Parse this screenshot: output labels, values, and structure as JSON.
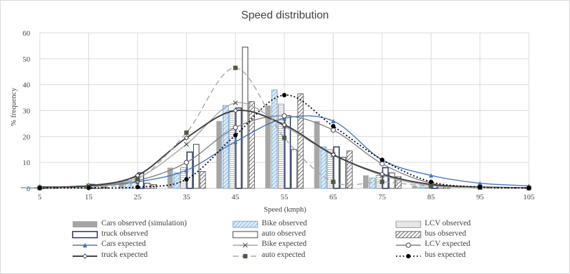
{
  "chart_data": {
    "type": "bar",
    "title": "Speed distribution",
    "xlabel": "Speed (kmph)",
    "ylabel": "% frequency",
    "x": [
      5,
      15,
      25,
      35,
      45,
      55,
      65,
      75,
      85,
      95,
      105
    ],
    "ylim": [
      0,
      60
    ],
    "yticks": [
      0,
      10,
      20,
      30,
      40,
      50,
      60
    ],
    "grid": true,
    "legend_position": "bottom",
    "bar_series": [
      {
        "name": "Cars observed  (simulation)",
        "key": "cars",
        "color": "#a6a6a6",
        "x": [
          5,
          15,
          25,
          35,
          45,
          55,
          65,
          75,
          85
        ],
        "values": [
          0.5,
          1.0,
          3.0,
          8.0,
          26.0,
          32.0,
          26.0,
          5.0,
          1.0
        ]
      },
      {
        "name": "Bike observed",
        "key": "bike",
        "color": "#bdd7ee",
        "x": [
          5,
          15,
          25,
          35,
          45,
          55,
          65,
          75,
          85
        ],
        "values": [
          0.3,
          1.0,
          3.0,
          6.0,
          32.0,
          38.0,
          16.0,
          4.0,
          0.5
        ]
      },
      {
        "name": "LCV observed",
        "key": "lcv",
        "color": "#d9d9d9",
        "x": [
          5,
          15,
          25,
          35,
          45,
          55,
          65,
          75,
          85
        ],
        "values": [
          0.3,
          1.0,
          4.0,
          8.0,
          30.0,
          32.5,
          15.0,
          5.0,
          0.5
        ]
      },
      {
        "name": "truck observed",
        "key": "truck",
        "color": "#2f3f6f",
        "x": [
          5,
          15,
          25,
          35,
          45,
          55,
          65,
          75,
          85
        ],
        "values": [
          0.5,
          1.5,
          6.0,
          14.0,
          31.0,
          28.0,
          16.0,
          8.0,
          1.5
        ]
      },
      {
        "name": "auto observed",
        "key": "auto",
        "color": "#595959",
        "x": [
          5,
          15,
          25,
          35,
          45,
          55,
          65,
          75,
          85
        ],
        "values": [
          0.5,
          1.0,
          2.0,
          17.0,
          54.5,
          15.0,
          12.0,
          6.0,
          1.0
        ]
      },
      {
        "name": "bus observed",
        "key": "bus",
        "color": "#7f7f7f",
        "x": [
          5,
          15,
          25,
          35,
          45,
          55,
          65,
          75,
          85
        ],
        "values": [
          0.3,
          0.5,
          1.5,
          6.5,
          33.5,
          36.5,
          14.5,
          4.5,
          0.5
        ]
      }
    ],
    "line_series": [
      {
        "name": "Cars expected",
        "key": "cars_exp",
        "color": "#4472c4",
        "dash": "",
        "marker": "triangle",
        "x": [
          5,
          15,
          25,
          35,
          45,
          55,
          65,
          75,
          85,
          95,
          105
        ],
        "values": [
          0.2,
          0.8,
          2.5,
          7.0,
          18.0,
          27.0,
          26.0,
          11.0,
          5.0,
          2.0,
          1.0
        ]
      },
      {
        "name": "Bike expected",
        "key": "bike_exp",
        "color": "#a6a6a6",
        "dash": "",
        "marker": "x",
        "x": [
          5,
          15,
          25,
          35,
          45,
          55,
          65,
          75,
          85,
          95,
          105
        ],
        "values": [
          0.2,
          1.0,
          4.0,
          17.0,
          33.0,
          24.0,
          13.0,
          5.0,
          1.0,
          0.5,
          0.2
        ]
      },
      {
        "name": "LCV expected",
        "key": "lcv_exp",
        "color": "#7f7f7f",
        "dash": "",
        "marker": "circle-open",
        "x": [
          5,
          15,
          25,
          35,
          45,
          55,
          65,
          75,
          85,
          95,
          105
        ],
        "values": [
          0.2,
          0.8,
          3.0,
          10.0,
          23.5,
          28.0,
          22.5,
          9.5,
          2.0,
          0.5,
          0.2
        ]
      },
      {
        "name": "truck expected",
        "key": "truck_exp",
        "color": "#404040",
        "dash": "",
        "marker": "diamond-open",
        "x": [
          5,
          15,
          25,
          35,
          45,
          55,
          65,
          75,
          85,
          95,
          105
        ],
        "values": [
          0.5,
          1.0,
          5.0,
          19.5,
          30.0,
          24.5,
          13.0,
          5.5,
          1.5,
          0.5,
          0.2
        ]
      },
      {
        "name": "auto expected",
        "key": "auto_exp",
        "color": "#a6a6a6",
        "dash": "8,5",
        "marker": "square",
        "x": [
          5,
          15,
          25,
          35,
          45,
          55,
          65,
          75,
          85,
          95,
          105
        ],
        "values": [
          0.2,
          0.5,
          3.5,
          21.5,
          46.5,
          19.5,
          2.5,
          2.5,
          0.8,
          0.3,
          0.1
        ]
      },
      {
        "name": "bus expected",
        "key": "bus_exp",
        "color": "#000000",
        "dash": "2,3",
        "marker": "circle",
        "x": [
          5,
          15,
          25,
          35,
          45,
          55,
          65,
          75,
          85,
          95,
          105
        ],
        "values": [
          0.1,
          0.2,
          0.5,
          3.5,
          20.5,
          36.0,
          24.0,
          11.0,
          2.5,
          0.5,
          0.1
        ]
      }
    ]
  }
}
